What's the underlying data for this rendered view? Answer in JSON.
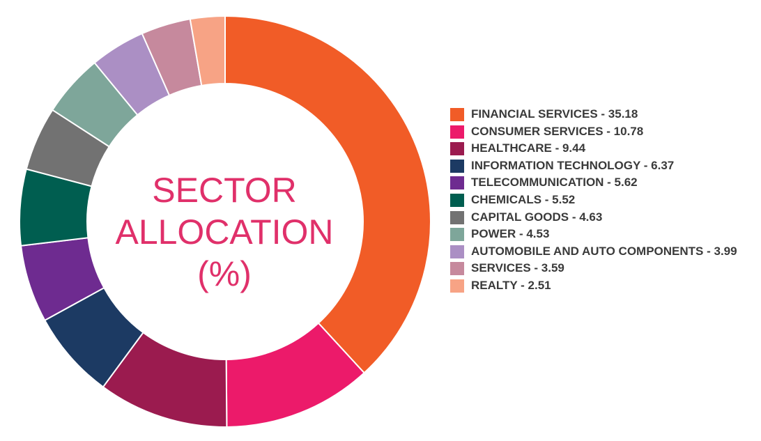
{
  "chart_data": {
    "type": "pie",
    "title_lines": [
      "SECTOR",
      "ALLOCATION",
      "(%)"
    ],
    "legend_position": "right",
    "categories": [
      "FINANCIAL SERVICES",
      "CONSUMER SERVICES",
      "HEALTHCARE",
      "INFORMATION TECHNOLOGY",
      "TELECOMMUNICATION",
      "CHEMICALS",
      "CAPITAL GOODS",
      "POWER",
      "AUTOMOBILE AND AUTO COMPONENTS",
      "SERVICES",
      "REALTY"
    ],
    "values": [
      35.18,
      10.78,
      9.44,
      6.37,
      5.62,
      5.52,
      4.63,
      4.53,
      3.99,
      3.59,
      2.51
    ],
    "legend_labels": [
      "FINANCIAL SERVICES - 35.18",
      "CONSUMER SERVICES - 10.78",
      "HEALTHCARE - 9.44",
      "INFORMATION TECHNOLOGY - 6.37",
      "TELECOMMUNICATION - 5.62",
      "CHEMICALS - 5.52",
      "CAPITAL GOODS - 4.63",
      "POWER - 4.53",
      "AUTOMOBILE AND AUTO COMPONENTS - 3.99",
      "SERVICES - 3.59",
      "REALTY - 2.51"
    ],
    "colors": [
      "#f15c27",
      "#ec1a6a",
      "#9b1b4f",
      "#1c3a63",
      "#6e2b90",
      "#005e50",
      "#727272",
      "#7ea69a",
      "#ab8fc4",
      "#c6899d",
      "#f7a385"
    ],
    "title_color": "#e0306a"
  }
}
